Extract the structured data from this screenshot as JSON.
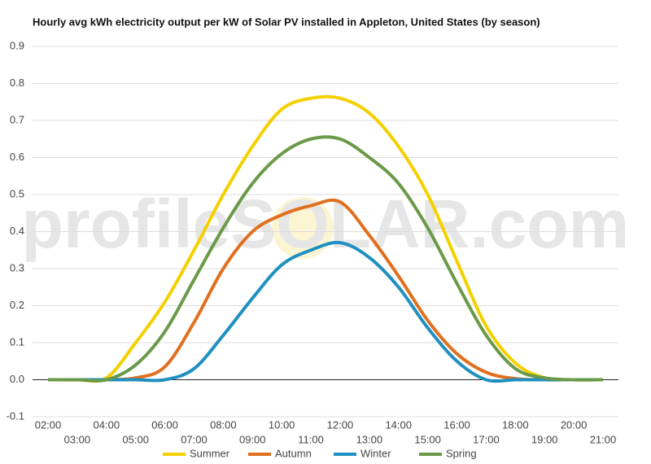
{
  "chart_data": {
    "type": "line",
    "title": "Hourly avg kWh electricity output per kW of Solar PV installed in Appleton, United States (by season)",
    "watermark": "profileSOLAR.com",
    "categories": [
      "02:00",
      "03:00",
      "04:00",
      "05:00",
      "06:00",
      "07:00",
      "08:00",
      "09:00",
      "10:00",
      "11:00",
      "12:00",
      "13:00",
      "14:00",
      "15:00",
      "16:00",
      "17:00",
      "18:00",
      "19:00",
      "20:00",
      "21:00"
    ],
    "series": [
      {
        "name": "Summer",
        "color": "#f5d000",
        "values": [
          0,
          0,
          0.005,
          0.1,
          0.21,
          0.35,
          0.5,
          0.63,
          0.73,
          0.76,
          0.76,
          0.72,
          0.63,
          0.5,
          0.32,
          0.145,
          0.045,
          0.005,
          0,
          0
        ]
      },
      {
        "name": "Autumn",
        "color": "#e07020",
        "values": [
          0,
          0,
          0,
          0.005,
          0.035,
          0.155,
          0.3,
          0.4,
          0.445,
          0.47,
          0.48,
          0.39,
          0.28,
          0.16,
          0.07,
          0.02,
          0.003,
          0,
          0,
          0
        ]
      },
      {
        "name": "Winter",
        "color": "#2090c0",
        "values": [
          0,
          0,
          0,
          0,
          0,
          0.03,
          0.12,
          0.22,
          0.31,
          0.35,
          0.37,
          0.33,
          0.25,
          0.14,
          0.05,
          0,
          0,
          0,
          0,
          0
        ]
      },
      {
        "name": "Spring",
        "color": "#6a9a48",
        "values": [
          0,
          0,
          0,
          0.04,
          0.13,
          0.27,
          0.41,
          0.53,
          0.61,
          0.65,
          0.65,
          0.6,
          0.53,
          0.41,
          0.26,
          0.12,
          0.03,
          0.005,
          0,
          0
        ]
      }
    ],
    "ylim": [
      -0.1,
      0.9
    ],
    "yticks": [
      -0.1,
      {
        "value": 0,
        "label": "0.0"
      },
      0.1,
      0.2,
      0.3,
      0.4,
      0.5,
      0.6,
      0.7,
      0.8,
      0.9
    ],
    "grid": true,
    "legend": "bottom"
  }
}
